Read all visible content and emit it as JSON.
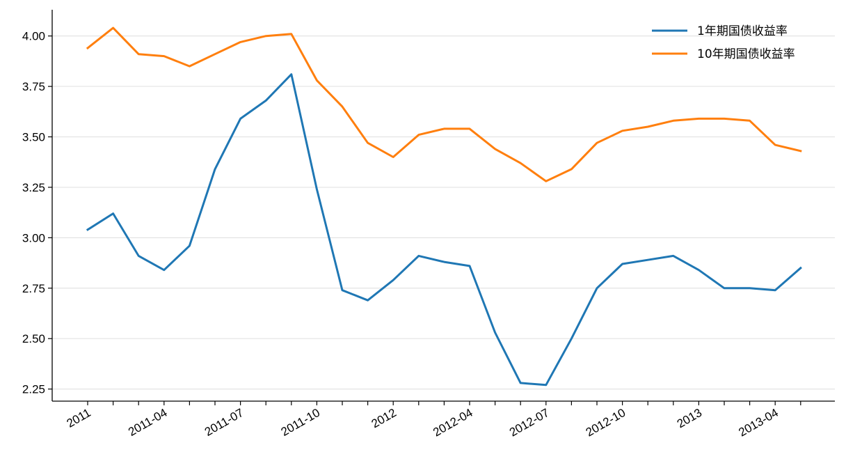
{
  "chart_data": {
    "type": "line",
    "title": "",
    "xlabel": "",
    "ylabel": "",
    "ylim": [
      2.19,
      4.13
    ],
    "grid": "horizontal",
    "legend_position": "top-right",
    "y_ticks": [
      2.25,
      2.5,
      2.75,
      3.0,
      3.25,
      3.5,
      3.75,
      4.0
    ],
    "y_tick_labels": [
      "2.25",
      "2.50",
      "2.75",
      "3.00",
      "3.25",
      "3.50",
      "3.75",
      "4.00"
    ],
    "x": [
      "2011-01",
      "2011-02",
      "2011-03",
      "2011-04",
      "2011-05",
      "2011-06",
      "2011-07",
      "2011-08",
      "2011-09",
      "2011-10",
      "2011-11",
      "2011-12",
      "2012-01",
      "2012-02",
      "2012-03",
      "2012-04",
      "2012-05",
      "2012-06",
      "2012-07",
      "2012-08",
      "2012-09",
      "2012-10",
      "2012-11",
      "2012-12",
      "2013-01",
      "2013-02",
      "2013-03",
      "2013-04",
      "2013-05"
    ],
    "x_tick_labels": [
      {
        "label": "2011",
        "x": "2011-01"
      },
      {
        "label": "2011-04",
        "x": "2011-04"
      },
      {
        "label": "2011-07",
        "x": "2011-07"
      },
      {
        "label": "2011-10",
        "x": "2011-10"
      },
      {
        "label": "2012",
        "x": "2012-01"
      },
      {
        "label": "2012-04",
        "x": "2012-04"
      },
      {
        "label": "2012-07",
        "x": "2012-07"
      },
      {
        "label": "2012-10",
        "x": "2012-10"
      },
      {
        "label": "2013",
        "x": "2013-01"
      },
      {
        "label": "2013-04",
        "x": "2013-04"
      }
    ],
    "series": [
      {
        "name": "1年期国债收益率",
        "color": "#1f77b4",
        "values": [
          3.04,
          3.12,
          2.91,
          2.84,
          2.96,
          3.34,
          3.59,
          3.68,
          3.81,
          3.24,
          2.74,
          2.69,
          2.79,
          2.91,
          2.88,
          2.86,
          2.53,
          2.28,
          2.27,
          2.5,
          2.75,
          2.87,
          2.89,
          2.91,
          2.84,
          2.75,
          2.75,
          2.74,
          2.85
        ]
      },
      {
        "name": "10年期国债收益率",
        "color": "#ff7f0e",
        "values": [
          3.94,
          4.04,
          3.91,
          3.9,
          3.85,
          3.91,
          3.97,
          4.0,
          4.01,
          3.78,
          3.65,
          3.47,
          3.4,
          3.51,
          3.54,
          3.54,
          3.44,
          3.37,
          3.28,
          3.34,
          3.47,
          3.53,
          3.55,
          3.58,
          3.59,
          3.59,
          3.58,
          3.46,
          3.43
        ]
      }
    ]
  }
}
